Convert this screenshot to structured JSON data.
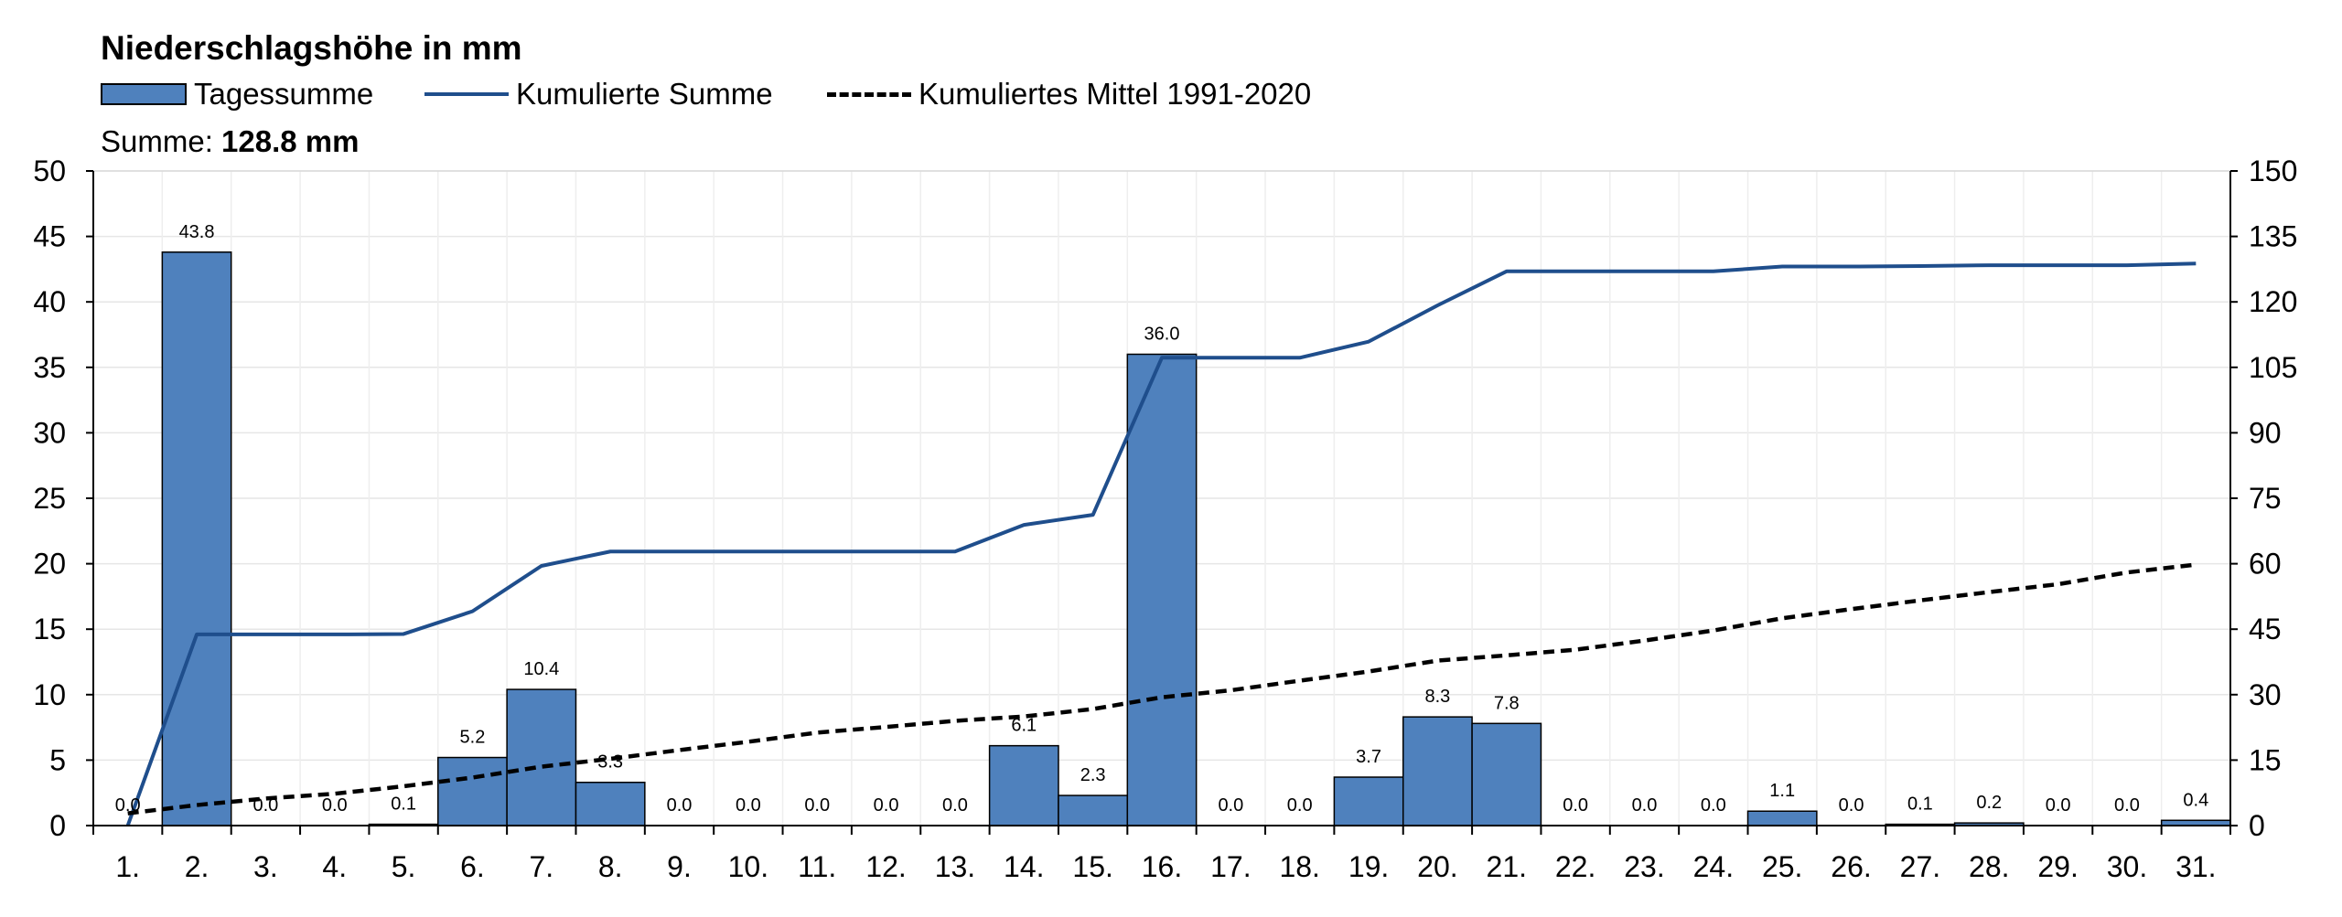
{
  "chart_data": {
    "type": "bar",
    "title": "Niederschlagshöhe in mm",
    "summary_label": "Summe:",
    "summary_value": "128.8 mm",
    "categories": [
      "1.",
      "2.",
      "3.",
      "4.",
      "5.",
      "6.",
      "7.",
      "8.",
      "9.",
      "10.",
      "11.",
      "12.",
      "13.",
      "14.",
      "15.",
      "16.",
      "17.",
      "18.",
      "19.",
      "20.",
      "21.",
      "22.",
      "23.",
      "24.",
      "25.",
      "26.",
      "27.",
      "28.",
      "29.",
      "30.",
      "31."
    ],
    "series": [
      {
        "name": "Tagessumme",
        "kind": "bar",
        "axis": "left",
        "color": "#4f81bd",
        "values": [
          0.0,
          43.8,
          0.0,
          0.0,
          0.1,
          5.2,
          10.4,
          3.3,
          0.0,
          0.0,
          0.0,
          0.0,
          0.0,
          6.1,
          2.3,
          36.0,
          0.0,
          0.0,
          3.7,
          8.3,
          7.8,
          0.0,
          0.0,
          0.0,
          1.1,
          0.0,
          0.1,
          0.2,
          0.0,
          0.0,
          0.4
        ],
        "labels": [
          "0.0",
          "43.8",
          "0.0",
          "0.0",
          "0.1",
          "5.2",
          "10.4",
          "3.3",
          "0.0",
          "0.0",
          "0.0",
          "0.0",
          "0.0",
          "6.1",
          "2.3",
          "36.0",
          "0.0",
          "0.0",
          "3.7",
          "8.3",
          "7.8",
          "0.0",
          "0.0",
          "0.0",
          "1.1",
          "0.0",
          "0.1",
          "0.2",
          "0.0",
          "0.0",
          "0.4"
        ]
      },
      {
        "name": "Kumulierte Summe",
        "kind": "line",
        "axis": "right",
        "color": "#1f4e8c",
        "values": [
          0.0,
          43.8,
          43.8,
          43.8,
          43.9,
          49.1,
          59.5,
          62.8,
          62.8,
          62.8,
          62.8,
          62.8,
          62.8,
          68.9,
          71.2,
          107.2,
          107.2,
          107.2,
          110.9,
          119.2,
          127.0,
          127.0,
          127.0,
          127.0,
          128.1,
          128.1,
          128.2,
          128.4,
          128.4,
          128.4,
          128.8
        ]
      },
      {
        "name": "Kumuliertes Mittel 1991-2020",
        "kind": "dashed-line",
        "axis": "right",
        "color": "#000000",
        "values": [
          2.8,
          4.7,
          6.2,
          7.3,
          9.0,
          11.0,
          13.5,
          15.3,
          17.3,
          19.2,
          21.3,
          22.6,
          24.0,
          25.0,
          26.7,
          29.4,
          31.0,
          33.2,
          35.3,
          37.8,
          39.0,
          40.3,
          42.4,
          44.7,
          47.5,
          49.6,
          51.6,
          53.5,
          55.3,
          58.0,
          59.8
        ]
      }
    ],
    "y_left": {
      "min": 0,
      "max": 50,
      "ticks": [
        "0",
        "5",
        "10",
        "15",
        "20",
        "25",
        "30",
        "35",
        "40",
        "45",
        "50"
      ]
    },
    "y_right": {
      "min": 0,
      "max": 150,
      "ticks": [
        "0",
        "15",
        "30",
        "45",
        "60",
        "75",
        "90",
        "105",
        "120",
        "135",
        "150"
      ]
    },
    "grid": true,
    "legend_position": "top-left"
  }
}
